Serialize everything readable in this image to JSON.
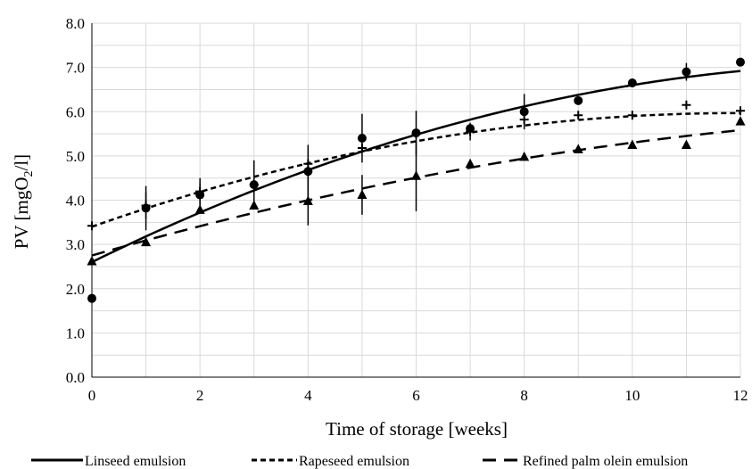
{
  "chart_data": {
    "type": "scatter",
    "xlabel": "Time of storage [weeks]",
    "ylabel": {
      "prefix": "PV [mgO",
      "sub": "2",
      "suffix": "/l]"
    },
    "xlim": [
      0,
      12
    ],
    "ylim": [
      0,
      8
    ],
    "x_ticks": [
      "0",
      "2",
      "4",
      "6",
      "8",
      "10",
      "12"
    ],
    "y_ticks": [
      "0.0",
      "1.0",
      "2.0",
      "3.0",
      "4.0",
      "5.0",
      "6.0",
      "7.0",
      "8.0"
    ],
    "grid": true,
    "legend_position": "bottom",
    "series": [
      {
        "name": "Linseed emulsion",
        "marker": "circle",
        "line_style": "solid",
        "x": [
          0,
          1,
          2,
          3,
          4,
          5,
          6,
          7,
          8,
          9,
          10,
          11,
          12
        ],
        "y": [
          1.78,
          3.82,
          4.12,
          4.35,
          4.65,
          5.4,
          5.52,
          5.62,
          6.0,
          6.25,
          6.65,
          6.9,
          7.12
        ],
        "error": [
          0,
          0.5,
          0.25,
          0.55,
          0.6,
          0.55,
          0.5,
          0.1,
          0.4,
          0,
          0.1,
          0.2,
          0.08
        ],
        "fit": [
          2.6,
          0.6,
          -0.02
        ]
      },
      {
        "name": "Rapeseed emulsion",
        "marker": "plus",
        "line_style": "short-dash",
        "x": [
          0,
          1,
          2,
          3,
          4,
          5,
          6,
          7,
          8,
          9,
          10,
          11,
          12
        ],
        "y": [
          3.42,
          3.88,
          4.2,
          4.35,
          4.82,
          5.18,
          5.5,
          5.55,
          5.82,
          5.92,
          5.92,
          6.15,
          6.02
        ],
        "error": [
          0,
          0.3,
          0.3,
          0.4,
          0,
          0,
          0,
          0.2,
          0,
          0,
          0,
          0,
          0
        ],
        "fit": [
          3.4,
          0.43,
          -0.018
        ]
      },
      {
        "name": "Refined palm olein emulsion",
        "marker": "triangle",
        "line_style": "long-dash",
        "x": [
          0,
          1,
          2,
          3,
          4,
          5,
          6,
          7,
          8,
          9,
          10,
          11,
          12
        ],
        "y": [
          2.62,
          3.05,
          3.78,
          3.88,
          3.98,
          4.12,
          4.55,
          4.82,
          4.98,
          5.15,
          5.25,
          5.25,
          5.78
        ],
        "error": [
          0,
          0,
          0,
          0,
          0.55,
          0.45,
          0.8,
          0,
          0,
          0,
          0,
          0,
          0
        ],
        "fit": [
          2.75,
          0.35,
          -0.0095
        ]
      }
    ]
  }
}
